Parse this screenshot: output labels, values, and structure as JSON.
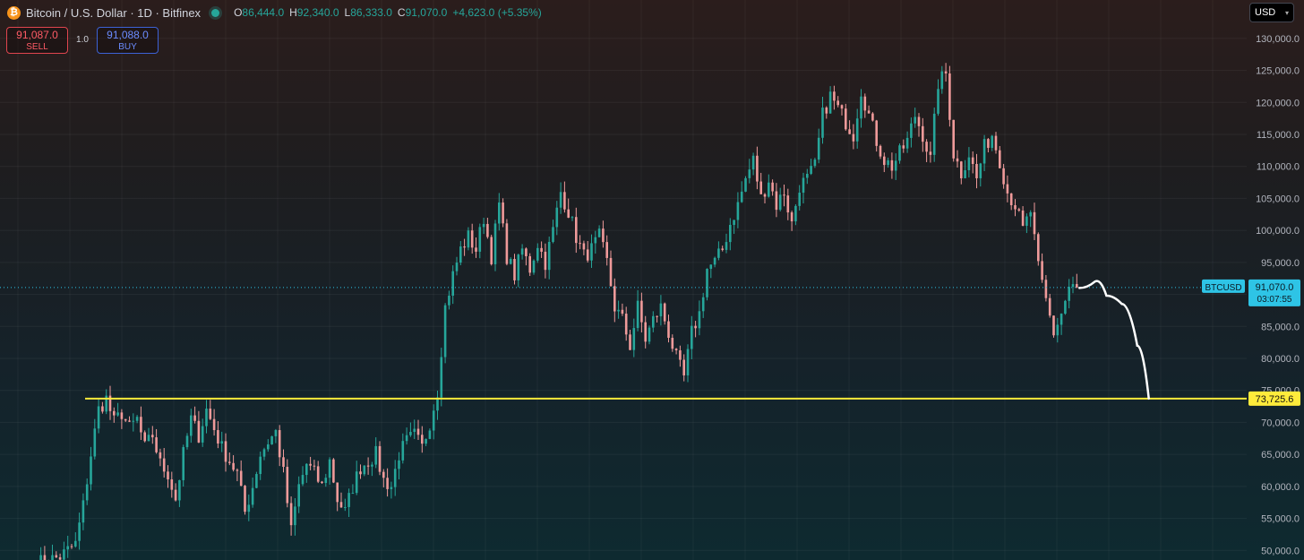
{
  "header": {
    "title": "Bitcoin / U.S. Dollar · 1D · Bitfinex",
    "coin_symbol": "₿",
    "open_label": "O",
    "open": "86,444.0",
    "high_label": "H",
    "high": "92,340.0",
    "low_label": "L",
    "low": "86,333.0",
    "close_label": "C",
    "close": "91,070.0",
    "change": "+4,623.0 (+5.35%)"
  },
  "trade": {
    "sell_price": "91,087.0",
    "sell_label": "SELL",
    "quantity": "1.0",
    "buy_price": "91,088.0",
    "buy_label": "BUY"
  },
  "currency_selector": {
    "value": "USD",
    "caret": "▾"
  },
  "colors": {
    "up": "#26a69a",
    "down": "#ef9a9a",
    "accent": "#2ec4e6",
    "level": "#ffeb3b",
    "projection": "#ffffff"
  },
  "chart_data": {
    "type": "candlestick",
    "y_tick_labels": [
      "50,000.0",
      "55,000.0",
      "60,000.0",
      "65,000.0",
      "70,000.0",
      "75,000.0",
      "80,000.0",
      "85,000.0",
      "90,000.0",
      "95,000.0",
      "100,000.0",
      "105,000.0",
      "110,000.0",
      "115,000.0",
      "120,000.0",
      "125,000.0",
      "130,000.0"
    ],
    "y_ticks": [
      50000,
      55000,
      60000,
      65000,
      70000,
      75000,
      80000,
      85000,
      90000,
      95000,
      100000,
      105000,
      110000,
      115000,
      120000,
      125000,
      130000
    ],
    "ylim": [
      48500,
      136000
    ],
    "grid": true,
    "price_path": [
      [
        0,
        48000
      ],
      [
        6,
        49000
      ],
      [
        10,
        51000
      ],
      [
        12,
        57000
      ],
      [
        14,
        65000
      ],
      [
        16,
        72000
      ],
      [
        18,
        73700
      ],
      [
        20,
        70000
      ],
      [
        22,
        71500
      ],
      [
        24,
        69000
      ],
      [
        26,
        70500
      ],
      [
        28,
        66000
      ],
      [
        30,
        68000
      ],
      [
        32,
        63500
      ],
      [
        34,
        62000
      ],
      [
        36,
        58000
      ],
      [
        38,
        65000
      ],
      [
        40,
        70500
      ],
      [
        42,
        68000
      ],
      [
        44,
        72000
      ],
      [
        46,
        69000
      ],
      [
        48,
        66000
      ],
      [
        50,
        64000
      ],
      [
        52,
        62000
      ],
      [
        54,
        56000
      ],
      [
        56,
        60000
      ],
      [
        58,
        65000
      ],
      [
        60,
        67000
      ],
      [
        62,
        68500
      ],
      [
        64,
        62000
      ],
      [
        66,
        53000
      ],
      [
        68,
        60000
      ],
      [
        70,
        63500
      ],
      [
        72,
        62000
      ],
      [
        74,
        60000
      ],
      [
        76,
        64000
      ],
      [
        78,
        58000
      ],
      [
        80,
        56000
      ],
      [
        82,
        60000
      ],
      [
        84,
        63000
      ],
      [
        86,
        64000
      ],
      [
        88,
        65000
      ],
      [
        90,
        61000
      ],
      [
        92,
        60000
      ],
      [
        94,
        65000
      ],
      [
        96,
        67000
      ],
      [
        98,
        68000
      ],
      [
        100,
        66000
      ],
      [
        102,
        70000
      ],
      [
        104,
        75000
      ],
      [
        106,
        88000
      ],
      [
        108,
        93000
      ],
      [
        110,
        97000
      ],
      [
        112,
        99000
      ],
      [
        114,
        97000
      ],
      [
        116,
        102000
      ],
      [
        118,
        96000
      ],
      [
        120,
        104000
      ],
      [
        122,
        96000
      ],
      [
        124,
        93000
      ],
      [
        126,
        97000
      ],
      [
        128,
        94000
      ],
      [
        130,
        98000
      ],
      [
        132,
        95000
      ],
      [
        134,
        100000
      ],
      [
        136,
        106000
      ],
      [
        138,
        103000
      ],
      [
        140,
        99000
      ],
      [
        142,
        96000
      ],
      [
        144,
        97000
      ],
      [
        146,
        99000
      ],
      [
        148,
        95000
      ],
      [
        150,
        88000
      ],
      [
        152,
        86000
      ],
      [
        154,
        82000
      ],
      [
        156,
        88000
      ],
      [
        158,
        83000
      ],
      [
        160,
        86000
      ],
      [
        162,
        88000
      ],
      [
        164,
        84000
      ],
      [
        166,
        80000
      ],
      [
        168,
        77000
      ],
      [
        170,
        84000
      ],
      [
        172,
        87000
      ],
      [
        174,
        94000
      ],
      [
        176,
        95000
      ],
      [
        178,
        97000
      ],
      [
        180,
        101000
      ],
      [
        182,
        104000
      ],
      [
        184,
        108000
      ],
      [
        186,
        111000
      ],
      [
        188,
        105000
      ],
      [
        190,
        108000
      ],
      [
        192,
        104000
      ],
      [
        194,
        106000
      ],
      [
        196,
        101000
      ],
      [
        198,
        107000
      ],
      [
        200,
        108000
      ],
      [
        202,
        110000
      ],
      [
        204,
        118000
      ],
      [
        206,
        121000
      ],
      [
        208,
        119000
      ],
      [
        210,
        117000
      ],
      [
        212,
        115000
      ],
      [
        214,
        122000
      ],
      [
        216,
        118000
      ],
      [
        218,
        114000
      ],
      [
        220,
        111000
      ],
      [
        222,
        110000
      ],
      [
        224,
        112000
      ],
      [
        226,
        114000
      ],
      [
        228,
        118000
      ],
      [
        230,
        115000
      ],
      [
        232,
        111000
      ],
      [
        234,
        123000
      ],
      [
        236,
        124500
      ],
      [
        238,
        112000
      ],
      [
        240,
        109000
      ],
      [
        242,
        112000
      ],
      [
        244,
        108000
      ],
      [
        246,
        113000
      ],
      [
        248,
        115000
      ],
      [
        250,
        111000
      ],
      [
        252,
        106000
      ],
      [
        254,
        104000
      ],
      [
        256,
        100000
      ],
      [
        258,
        103000
      ],
      [
        260,
        94000
      ],
      [
        262,
        89000
      ],
      [
        264,
        84000
      ],
      [
        266,
        87000
      ],
      [
        268,
        91000
      ],
      [
        270,
        91070
      ]
    ],
    "current_price": {
      "label": "BTCUSD",
      "value": "91,070.0",
      "countdown": "03:07:55",
      "price": 91070
    },
    "levels": [
      {
        "price": 73725.6,
        "label": "73,725.6"
      }
    ],
    "projection": [
      [
        271,
        91000
      ],
      [
        275,
        92000
      ],
      [
        278,
        89800
      ],
      [
        282,
        88500
      ],
      [
        286,
        82000
      ],
      [
        289,
        73725.6
      ]
    ]
  }
}
